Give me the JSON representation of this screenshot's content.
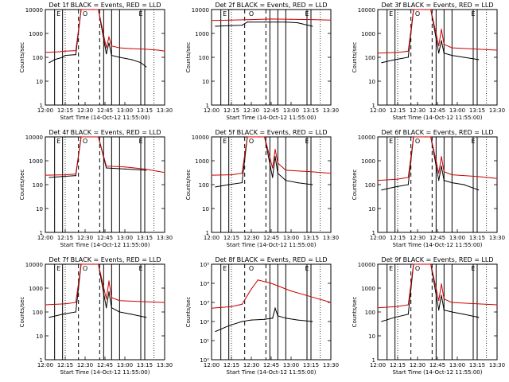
{
  "xlabel": "Start Time (14-Oct-12 11:55:00)",
  "ylabel": "Counts/sec",
  "x_ticks": [
    "12:00",
    "12:15",
    "12:30",
    "12:45",
    "13:00",
    "13:15",
    "13:30"
  ],
  "y_ticks_standard": [
    "1",
    "10",
    "100",
    "1000",
    "10000"
  ],
  "y_ticks_det8": [
    "10⁰",
    "10¹",
    "10²",
    "10³",
    "10⁴",
    "10⁵"
  ],
  "panel_titles": [
    "Det 1f BLACK = Events, RED = LLD",
    "Det 2f BLACK = Events, RED = LLD",
    "Det 3f BLACK = Events, RED = LLD",
    "Det 4f BLACK = Events, RED = LLD",
    "Det 5f BLACK = Events, RED = LLD",
    "Det 6f BLACK = Events, RED = LLD",
    "Det 7f BLACK = Events, RED = LLD",
    "Det 8f BLACK = Events, RED = LLD",
    "Det 9f BLACK = Events, RED = LLD"
  ],
  "markers": {
    "SAA_top_labels": [
      "E",
      "O",
      "E"
    ],
    "colors": {
      "events": "#000000",
      "lld": "#cc0000"
    }
  },
  "chart_data": [
    {
      "type": "line",
      "title": "Det 1f BLACK = Events, RED = LLD",
      "xlabel": "Start Time (14-Oct-12 11:55:00)",
      "ylabel": "Counts/sec",
      "xlim": [
        "12:00",
        "13:30"
      ],
      "ylim": [
        1,
        10000
      ],
      "yscale": "log",
      "series": [
        {
          "name": "BLACK = Events",
          "color": "#000000",
          "x": [
            "12:03",
            "12:07",
            "12:13",
            "12:15",
            "12:23",
            "12:27",
            "12:36",
            "12:40",
            "12:46",
            "12:48",
            "12:50",
            "12:56",
            "13:05",
            "13:12",
            "13:16"
          ],
          "values": [
            60,
            80,
            100,
            120,
            130,
            10000,
            10000,
            10000,
            140,
            400,
            120,
            100,
            80,
            60,
            40
          ]
        },
        {
          "name": "RED = LLD",
          "color": "#cc0000",
          "x": [
            "12:00",
            "12:10",
            "12:15",
            "12:23",
            "12:27",
            "12:36",
            "12:40",
            "12:46",
            "12:48",
            "12:50",
            "12:56",
            "13:05",
            "13:15",
            "13:25",
            "13:30"
          ],
          "values": [
            160,
            170,
            180,
            190,
            10000,
            10000,
            10000,
            250,
            700,
            300,
            250,
            230,
            220,
            200,
            180
          ]
        }
      ]
    },
    {
      "type": "line",
      "title": "Det 2f BLACK = Events, RED = LLD",
      "xlabel": "Start Time (14-Oct-12 11:55:00)",
      "ylabel": "Counts/sec",
      "xlim": [
        "12:00",
        "13:30"
      ],
      "ylim": [
        1,
        10000
      ],
      "yscale": "log",
      "series": [
        {
          "name": "BLACK = Events",
          "color": "#000000",
          "x": [
            "12:03",
            "12:13",
            "12:23",
            "12:27",
            "12:40",
            "12:56",
            "13:05",
            "13:16"
          ],
          "values": [
            2000,
            2100,
            2200,
            3000,
            3000,
            3000,
            2800,
            2000
          ]
        },
        {
          "name": "RED = LLD",
          "color": "#cc0000",
          "x": [
            "12:00",
            "12:15",
            "12:30",
            "12:45",
            "13:00",
            "13:15",
            "13:30"
          ],
          "values": [
            3500,
            3600,
            3800,
            4000,
            3900,
            3800,
            3600
          ]
        }
      ]
    },
    {
      "type": "line",
      "title": "Det 3f BLACK = Events, RED = LLD",
      "xlabel": "Start Time (14-Oct-12 11:55:00)",
      "ylabel": "Counts/sec",
      "xlim": [
        "12:00",
        "13:30"
      ],
      "ylim": [
        1,
        10000
      ],
      "yscale": "log",
      "series": [
        {
          "name": "BLACK = Events",
          "color": "#000000",
          "x": [
            "12:03",
            "12:13",
            "12:23",
            "12:27",
            "12:36",
            "12:40",
            "12:46",
            "12:48",
            "12:50",
            "12:56",
            "13:05",
            "13:16"
          ],
          "values": [
            60,
            80,
            100,
            10000,
            10000,
            10000,
            150,
            500,
            150,
            120,
            100,
            80
          ]
        },
        {
          "name": "RED = LLD",
          "color": "#cc0000",
          "x": [
            "12:00",
            "12:15",
            "12:23",
            "12:27",
            "12:36",
            "12:40",
            "12:46",
            "12:48",
            "12:50",
            "12:56",
            "13:15",
            "13:30"
          ],
          "values": [
            150,
            160,
            180,
            10000,
            10000,
            10000,
            300,
            1500,
            350,
            250,
            220,
            200
          ]
        }
      ]
    },
    {
      "type": "line",
      "title": "Det 4f BLACK = Events, RED = LLD",
      "xlabel": "Start Time (14-Oct-12 11:55:00)",
      "ylabel": "Counts/sec",
      "xlim": [
        "12:00",
        "13:30"
      ],
      "ylim": [
        1,
        10000
      ],
      "yscale": "log",
      "series": [
        {
          "name": "BLACK = Events",
          "color": "#000000",
          "x": [
            "12:03",
            "12:13",
            "12:23",
            "12:27",
            "12:40",
            "12:46",
            "13:00",
            "13:16"
          ],
          "values": [
            200,
            220,
            240,
            10000,
            10000,
            500,
            450,
            400
          ]
        },
        {
          "name": "RED = LLD",
          "color": "#cc0000",
          "x": [
            "12:00",
            "12:15",
            "12:23",
            "12:27",
            "12:40",
            "12:46",
            "13:00",
            "13:15",
            "13:30"
          ],
          "values": [
            250,
            260,
            280,
            10000,
            10000,
            600,
            550,
            450,
            320
          ]
        }
      ]
    },
    {
      "type": "line",
      "title": "Det 5f BLACK = Events, RED = LLD",
      "xlabel": "Start Time (14-Oct-12 11:55:00)",
      "ylabel": "Counts/sec",
      "xlim": [
        "12:00",
        "13:30"
      ],
      "ylim": [
        1,
        10000
      ],
      "yscale": "log",
      "series": [
        {
          "name": "BLACK = Events",
          "color": "#000000",
          "x": [
            "12:03",
            "12:13",
            "12:23",
            "12:27",
            "12:36",
            "12:40",
            "12:46",
            "12:48",
            "12:50",
            "12:56",
            "13:05",
            "13:16"
          ],
          "values": [
            80,
            100,
            120,
            10000,
            10000,
            10000,
            200,
            1500,
            300,
            150,
            120,
            100
          ]
        },
        {
          "name": "RED = LLD",
          "color": "#cc0000",
          "x": [
            "12:00",
            "12:15",
            "12:23",
            "12:27",
            "12:36",
            "12:40",
            "12:46",
            "12:48",
            "12:50",
            "12:56",
            "13:15",
            "13:30"
          ],
          "values": [
            250,
            260,
            300,
            10000,
            10000,
            10000,
            500,
            3000,
            800,
            400,
            350,
            300
          ]
        }
      ]
    },
    {
      "type": "line",
      "title": "Det 6f BLACK = Events, RED = LLD",
      "xlabel": "Start Time (14-Oct-12 11:55:00)",
      "ylabel": "Counts/sec",
      "xlim": [
        "12:00",
        "13:30"
      ],
      "ylim": [
        1,
        10000
      ],
      "yscale": "log",
      "series": [
        {
          "name": "BLACK = Events",
          "color": "#000000",
          "x": [
            "12:03",
            "12:13",
            "12:23",
            "12:27",
            "12:36",
            "12:40",
            "12:46",
            "12:48",
            "12:50",
            "12:56",
            "13:05",
            "13:16"
          ],
          "values": [
            60,
            80,
            100,
            10000,
            10000,
            10000,
            150,
            600,
            150,
            120,
            100,
            60
          ]
        },
        {
          "name": "RED = LLD",
          "color": "#cc0000",
          "x": [
            "12:00",
            "12:15",
            "12:23",
            "12:27",
            "12:36",
            "12:40",
            "12:46",
            "12:48",
            "12:50",
            "12:56",
            "13:15",
            "13:30"
          ],
          "values": [
            150,
            170,
            200,
            10000,
            10000,
            10000,
            300,
            1500,
            350,
            260,
            220,
            180
          ]
        }
      ]
    },
    {
      "type": "line",
      "title": "Det 7f BLACK = Events, RED = LLD",
      "xlabel": "Start Time (14-Oct-12 11:55:00)",
      "ylabel": "Counts/sec",
      "xlim": [
        "12:00",
        "13:30"
      ],
      "ylim": [
        1,
        10000
      ],
      "yscale": "log",
      "series": [
        {
          "name": "BLACK = Events",
          "color": "#000000",
          "x": [
            "12:03",
            "12:13",
            "12:23",
            "12:27",
            "12:36",
            "12:40",
            "12:46",
            "12:48",
            "12:50",
            "12:56",
            "13:05",
            "13:16"
          ],
          "values": [
            60,
            80,
            100,
            10000,
            10000,
            10000,
            150,
            700,
            150,
            100,
            80,
            60
          ]
        },
        {
          "name": "RED = LLD",
          "color": "#cc0000",
          "x": [
            "12:00",
            "12:15",
            "12:23",
            "12:27",
            "12:36",
            "12:40",
            "12:46",
            "12:48",
            "12:50",
            "12:56",
            "13:15",
            "13:30"
          ],
          "values": [
            200,
            220,
            250,
            10000,
            10000,
            10000,
            350,
            2000,
            400,
            300,
            270,
            250
          ]
        }
      ]
    },
    {
      "type": "line",
      "title": "Det 8f BLACK = Events, RED = LLD",
      "xlabel": "Start Time (14-Oct-12 11:55:00)",
      "ylabel": "Counts/sec",
      "xlim": [
        "12:00",
        "13:30"
      ],
      "ylim": [
        1,
        100000
      ],
      "yscale": "log",
      "series": [
        {
          "name": "BLACK = Events",
          "color": "#000000",
          "x": [
            "12:03",
            "12:13",
            "12:23",
            "12:30",
            "12:40",
            "12:46",
            "12:48",
            "12:50",
            "12:56",
            "13:05",
            "13:16"
          ],
          "values": [
            30,
            60,
            100,
            120,
            130,
            150,
            500,
            200,
            150,
            120,
            100
          ]
        },
        {
          "name": "RED = LLD",
          "color": "#cc0000",
          "x": [
            "12:00",
            "12:15",
            "12:23",
            "12:30",
            "12:35",
            "12:45",
            "13:00",
            "13:15",
            "13:30"
          ],
          "values": [
            500,
            600,
            800,
            5000,
            15000,
            10000,
            4000,
            2000,
            1000
          ]
        }
      ]
    },
    {
      "type": "line",
      "title": "Det 9f BLACK = Events, RED = LLD",
      "xlabel": "Start Time (14-Oct-12 11:55:00)",
      "ylabel": "Counts/sec",
      "xlim": [
        "12:00",
        "13:30"
      ],
      "ylim": [
        1,
        10000
      ],
      "yscale": "log",
      "series": [
        {
          "name": "BLACK = Events",
          "color": "#000000",
          "x": [
            "12:03",
            "12:13",
            "12:23",
            "12:27",
            "12:36",
            "12:40",
            "12:46",
            "12:48",
            "12:50",
            "12:56",
            "13:05",
            "13:16"
          ],
          "values": [
            40,
            60,
            80,
            10000,
            10000,
            10000,
            120,
            500,
            120,
            100,
            80,
            60
          ]
        },
        {
          "name": "RED = LLD",
          "color": "#cc0000",
          "x": [
            "12:00",
            "12:15",
            "12:23",
            "12:27",
            "12:36",
            "12:40",
            "12:46",
            "12:48",
            "12:50",
            "12:56",
            "13:15",
            "13:30"
          ],
          "values": [
            150,
            170,
            200,
            10000,
            10000,
            10000,
            300,
            1500,
            350,
            250,
            220,
            200
          ]
        }
      ]
    }
  ]
}
